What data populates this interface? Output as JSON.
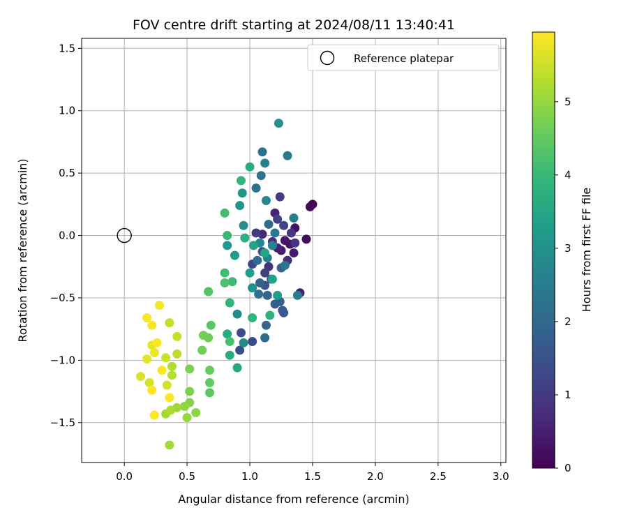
{
  "chart_data": {
    "type": "scatter",
    "title": "FOV centre drift starting at 2024/08/11 13:40:41",
    "xlabel": "Angular distance from reference (arcmin)",
    "ylabel": "Rotation from reference (arcmin)",
    "xlim": [
      -0.34,
      3.04
    ],
    "ylim": [
      -1.82,
      1.58
    ],
    "xticks": [
      0.0,
      0.5,
      1.0,
      1.5,
      2.0,
      2.5,
      3.0
    ],
    "xtick_labels": [
      "0.0",
      "0.5",
      "1.0",
      "1.5",
      "2.0",
      "2.5",
      "3.0"
    ],
    "yticks": [
      -1.5,
      -1.0,
      -0.5,
      0.0,
      0.5,
      1.0,
      1.5
    ],
    "ytick_labels": [
      "−1.5",
      "−1.0",
      "−0.5",
      "0.0",
      "0.5",
      "1.0",
      "1.5"
    ],
    "grid": true,
    "legend": {
      "position": "top-right",
      "entries": [
        "Reference platepar"
      ]
    },
    "colorbar": {
      "label": "Hours from first FF file",
      "colormap": "viridis",
      "range": [
        0,
        5.95
      ],
      "ticks": [
        0,
        1,
        2,
        3,
        4,
        5
      ],
      "tick_labels": [
        "0",
        "1",
        "2",
        "3",
        "4",
        "5"
      ]
    },
    "reference_point": {
      "x": 0.0,
      "y": 0.0,
      "marker": "open-circle"
    },
    "points": [
      {
        "x": 1.5,
        "y": 0.25,
        "hours": 0.1
      },
      {
        "x": 1.48,
        "y": 0.23,
        "hours": 0.15
      },
      {
        "x": 1.45,
        "y": -0.03,
        "hours": 0.2
      },
      {
        "x": 1.36,
        "y": 0.06,
        "hours": 0.25
      },
      {
        "x": 1.32,
        "y": -0.07,
        "hours": 0.3
      },
      {
        "x": 1.28,
        "y": -0.04,
        "hours": 0.35
      },
      {
        "x": 1.35,
        "y": -0.14,
        "hours": 0.4
      },
      {
        "x": 1.25,
        "y": -0.12,
        "hours": 0.45
      },
      {
        "x": 1.4,
        "y": -0.46,
        "hours": 0.5
      },
      {
        "x": 1.22,
        "y": -0.1,
        "hours": 0.55
      },
      {
        "x": 1.2,
        "y": 0.18,
        "hours": 0.6
      },
      {
        "x": 1.1,
        "y": 0.01,
        "hours": 0.7
      },
      {
        "x": 1.3,
        "y": -0.2,
        "hours": 0.75
      },
      {
        "x": 1.18,
        "y": -0.05,
        "hours": 0.8
      },
      {
        "x": 1.15,
        "y": -0.25,
        "hours": 0.85
      },
      {
        "x": 1.36,
        "y": -0.06,
        "hours": 0.9
      },
      {
        "x": 1.33,
        "y": 0.02,
        "hours": 0.95
      },
      {
        "x": 1.05,
        "y": 0.02,
        "hours": 1.0
      },
      {
        "x": 1.24,
        "y": 0.31,
        "hours": 1.05
      },
      {
        "x": 1.12,
        "y": -0.3,
        "hours": 1.1
      },
      {
        "x": 1.22,
        "y": 0.13,
        "hours": 1.15
      },
      {
        "x": 1.27,
        "y": 0.08,
        "hours": 1.2
      },
      {
        "x": 1.02,
        "y": -0.23,
        "hours": 1.25
      },
      {
        "x": 1.02,
        "y": -0.85,
        "hours": 1.3
      },
      {
        "x": 0.93,
        "y": -0.78,
        "hours": 1.35
      },
      {
        "x": 0.92,
        "y": -0.92,
        "hours": 1.4
      },
      {
        "x": 1.1,
        "y": -0.13,
        "hours": 1.45
      },
      {
        "x": 1.12,
        "y": -0.4,
        "hours": 1.5
      },
      {
        "x": 1.17,
        "y": -0.35,
        "hours": 1.55
      },
      {
        "x": 1.27,
        "y": -0.62,
        "hours": 1.6
      },
      {
        "x": 1.26,
        "y": -0.6,
        "hours": 1.65
      },
      {
        "x": 1.24,
        "y": -0.53,
        "hours": 1.7
      },
      {
        "x": 1.2,
        "y": -0.55,
        "hours": 1.75
      },
      {
        "x": 1.25,
        "y": -0.26,
        "hours": 1.8
      },
      {
        "x": 1.14,
        "y": -0.48,
        "hours": 1.85
      },
      {
        "x": 1.08,
        "y": -0.38,
        "hours": 1.9
      },
      {
        "x": 1.13,
        "y": -0.72,
        "hours": 1.95
      },
      {
        "x": 1.12,
        "y": -0.82,
        "hours": 2.0
      },
      {
        "x": 1.15,
        "y": 0.09,
        "hours": 2.05
      },
      {
        "x": 1.06,
        "y": -0.2,
        "hours": 2.1
      },
      {
        "x": 1.07,
        "y": -0.47,
        "hours": 2.15
      },
      {
        "x": 1.1,
        "y": 0.67,
        "hours": 2.2
      },
      {
        "x": 1.09,
        "y": 0.48,
        "hours": 2.25
      },
      {
        "x": 1.05,
        "y": 0.38,
        "hours": 2.3
      },
      {
        "x": 1.28,
        "y": -0.24,
        "hours": 2.35
      },
      {
        "x": 1.2,
        "y": 0.02,
        "hours": 2.4
      },
      {
        "x": 1.3,
        "y": 0.64,
        "hours": 2.45
      },
      {
        "x": 1.38,
        "y": -0.48,
        "hours": 2.5
      },
      {
        "x": 1.35,
        "y": 0.14,
        "hours": 2.55
      },
      {
        "x": 1.14,
        "y": -0.18,
        "hours": 2.6
      },
      {
        "x": 1.12,
        "y": 0.58,
        "hours": 2.65
      },
      {
        "x": 1.18,
        "y": -0.08,
        "hours": 2.7
      },
      {
        "x": 1.13,
        "y": 0.28,
        "hours": 2.75
      },
      {
        "x": 1.08,
        "y": -0.06,
        "hours": 2.8
      },
      {
        "x": 0.9,
        "y": -0.63,
        "hours": 2.85
      },
      {
        "x": 0.95,
        "y": -0.86,
        "hours": 2.9
      },
      {
        "x": 0.95,
        "y": 0.08,
        "hours": 2.95
      },
      {
        "x": 1.02,
        "y": -0.42,
        "hours": 3.0
      },
      {
        "x": 1.23,
        "y": 0.9,
        "hours": 3.05
      },
      {
        "x": 0.92,
        "y": 0.24,
        "hours": 3.1
      },
      {
        "x": 0.94,
        "y": 0.34,
        "hours": 3.15
      },
      {
        "x": 0.82,
        "y": -0.08,
        "hours": 3.2
      },
      {
        "x": 0.88,
        "y": -0.16,
        "hours": 3.25
      },
      {
        "x": 1.0,
        "y": -0.3,
        "hours": 3.3
      },
      {
        "x": 1.22,
        "y": -0.48,
        "hours": 3.35
      },
      {
        "x": 1.18,
        "y": -0.35,
        "hours": 3.4
      },
      {
        "x": 1.03,
        "y": -0.08,
        "hours": 3.45
      },
      {
        "x": 1.12,
        "y": -0.14,
        "hours": 3.5
      },
      {
        "x": 0.9,
        "y": -1.06,
        "hours": 3.55
      },
      {
        "x": 0.82,
        "y": -0.79,
        "hours": 3.6
      },
      {
        "x": 0.84,
        "y": -0.96,
        "hours": 3.65
      },
      {
        "x": 1.0,
        "y": 0.55,
        "hours": 3.7
      },
      {
        "x": 0.96,
        "y": -0.02,
        "hours": 3.75
      },
      {
        "x": 1.16,
        "y": -0.64,
        "hours": 3.8
      },
      {
        "x": 1.02,
        "y": -0.66,
        "hours": 3.85
      },
      {
        "x": 0.93,
        "y": 0.44,
        "hours": 3.9
      },
      {
        "x": 0.84,
        "y": -0.54,
        "hours": 3.95
      },
      {
        "x": 0.82,
        "y": 0.0,
        "hours": 4.0
      },
      {
        "x": 0.86,
        "y": -0.37,
        "hours": 4.05
      },
      {
        "x": 0.8,
        "y": -0.3,
        "hours": 4.1
      },
      {
        "x": 0.8,
        "y": 0.18,
        "hours": 4.15
      },
      {
        "x": 0.84,
        "y": -0.85,
        "hours": 4.2
      },
      {
        "x": 0.8,
        "y": -0.38,
        "hours": 4.25
      },
      {
        "x": 0.67,
        "y": -0.45,
        "hours": 4.3
      },
      {
        "x": 0.67,
        "y": -0.45,
        "hours": 4.35
      },
      {
        "x": 0.69,
        "y": -0.72,
        "hours": 4.4
      },
      {
        "x": 0.68,
        "y": -1.26,
        "hours": 4.45
      },
      {
        "x": 0.68,
        "y": -1.18,
        "hours": 4.5
      },
      {
        "x": 0.68,
        "y": -1.08,
        "hours": 4.55
      },
      {
        "x": 0.67,
        "y": -0.82,
        "hours": 4.6
      },
      {
        "x": 0.62,
        "y": -0.92,
        "hours": 4.65
      },
      {
        "x": 0.63,
        "y": -0.8,
        "hours": 4.7
      },
      {
        "x": 0.52,
        "y": -1.07,
        "hours": 4.75
      },
      {
        "x": 0.52,
        "y": -1.25,
        "hours": 4.8
      },
      {
        "x": 0.52,
        "y": -1.34,
        "hours": 4.85
      },
      {
        "x": 0.57,
        "y": -1.42,
        "hours": 4.9
      },
      {
        "x": 0.48,
        "y": -1.37,
        "hours": 4.95
      },
      {
        "x": 0.5,
        "y": -1.46,
        "hours": 5.0
      },
      {
        "x": 0.42,
        "y": -1.38,
        "hours": 5.05
      },
      {
        "x": 0.36,
        "y": -1.68,
        "hours": 5.1
      },
      {
        "x": 0.33,
        "y": -1.43,
        "hours": 5.15
      },
      {
        "x": 0.37,
        "y": -1.4,
        "hours": 5.2
      },
      {
        "x": 0.38,
        "y": -1.05,
        "hours": 5.25
      },
      {
        "x": 0.38,
        "y": -1.12,
        "hours": 5.3
      },
      {
        "x": 0.42,
        "y": -0.95,
        "hours": 5.35
      },
      {
        "x": 0.36,
        "y": -0.7,
        "hours": 5.4
      },
      {
        "x": 0.42,
        "y": -0.81,
        "hours": 5.45
      },
      {
        "x": 0.33,
        "y": -0.98,
        "hours": 5.5
      },
      {
        "x": 0.34,
        "y": -1.2,
        "hours": 5.55
      },
      {
        "x": 0.2,
        "y": -1.18,
        "hours": 5.6
      },
      {
        "x": 0.13,
        "y": -1.13,
        "hours": 5.65
      },
      {
        "x": 0.18,
        "y": -0.99,
        "hours": 5.7
      },
      {
        "x": 0.22,
        "y": -0.88,
        "hours": 5.75
      },
      {
        "x": 0.24,
        "y": -0.94,
        "hours": 5.8
      },
      {
        "x": 0.28,
        "y": -0.56,
        "hours": 5.85
      },
      {
        "x": 0.18,
        "y": -0.66,
        "hours": 5.88
      },
      {
        "x": 0.22,
        "y": -0.72,
        "hours": 5.9
      },
      {
        "x": 0.24,
        "y": -1.44,
        "hours": 5.92
      },
      {
        "x": 0.36,
        "y": -1.3,
        "hours": 5.93
      },
      {
        "x": 0.3,
        "y": -1.08,
        "hours": 5.95
      },
      {
        "x": 0.22,
        "y": -1.24,
        "hours": 5.95
      },
      {
        "x": 0.26,
        "y": -0.86,
        "hours": 5.95
      }
    ]
  }
}
